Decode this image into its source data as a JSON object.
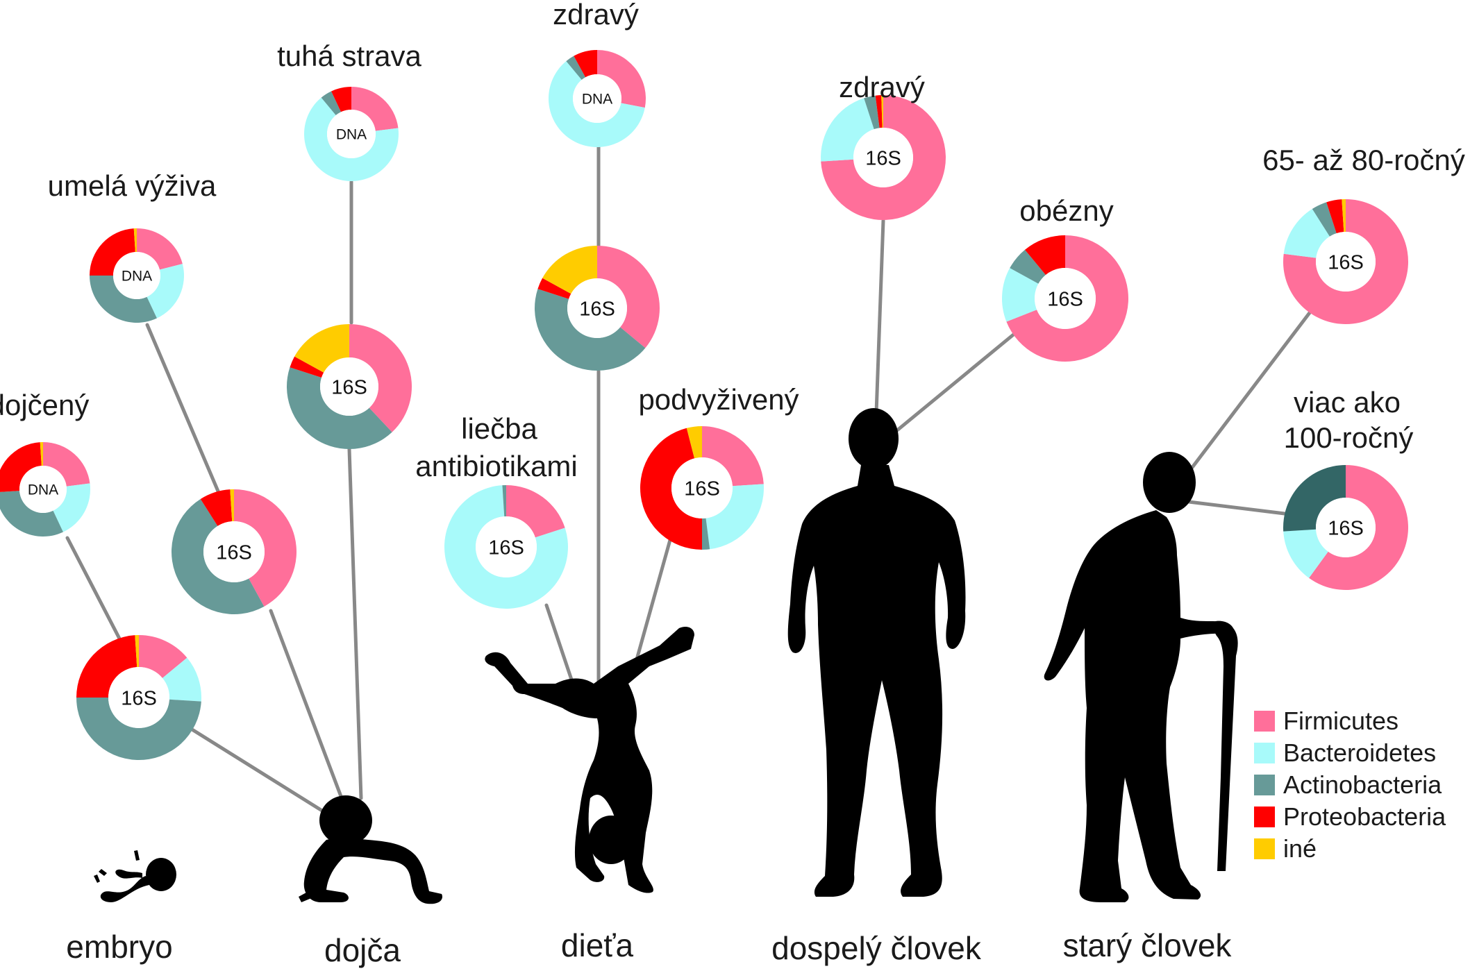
{
  "colors": {
    "firmicutes": "#ff6f9a",
    "bacteroidetes": "#a8fafa",
    "actinobacteria": "#679a98",
    "actinobacteria_dark": "#336666",
    "proteobacteria": "#ff0000",
    "other": "#ffcc00",
    "silhouette": "#000000",
    "connector": "#888888"
  },
  "stages": {
    "embryo": "embryo",
    "infant": "dojča",
    "child": "dieťa",
    "adult": "dospelý človek",
    "elderly": "starý človek"
  },
  "captions": {
    "breastfed": "dojčený",
    "formula": "umelá výživa",
    "solid_food": "tuhá strava",
    "healthy_child": "zdravý",
    "antibiotics_line1": "liečba",
    "antibiotics_line2": "antibiotikami",
    "malnourished": "podvyživený",
    "healthy_adult": "zdravý",
    "obese": "obézny",
    "age_65_80": "65- až 80-ročný",
    "centenarian_line1": "viac ako",
    "centenarian_line2": "100-ročný"
  },
  "legend": [
    {
      "key": "firmicutes",
      "label": "Firmicutes",
      "color": "#ff6f9a"
    },
    {
      "key": "bacteroidetes",
      "label": "Bacteroidetes",
      "color": "#a8fafa"
    },
    {
      "key": "actinobacteria",
      "label": "Actinobacteria",
      "color": "#679a98"
    },
    {
      "key": "proteobacteria",
      "label": "Proteobacteria",
      "color": "#ff0000"
    },
    {
      "key": "other",
      "label": "iné",
      "color": "#ffcc00"
    }
  ],
  "chart_data": [
    {
      "id": "breastfed-dna",
      "method": "DNA",
      "slices": [
        {
          "key": "firmicutes",
          "value": 23
        },
        {
          "key": "bacteroidetes",
          "value": 20
        },
        {
          "key": "actinobacteria",
          "value": 31
        },
        {
          "key": "proteobacteria",
          "value": 25
        },
        {
          "key": "other",
          "value": 1
        }
      ]
    },
    {
      "id": "breastfed-16s",
      "method": "16S",
      "slices": [
        {
          "key": "firmicutes",
          "value": 14
        },
        {
          "key": "bacteroidetes",
          "value": 12
        },
        {
          "key": "actinobacteria",
          "value": 49
        },
        {
          "key": "proteobacteria",
          "value": 24
        },
        {
          "key": "other",
          "value": 1
        }
      ]
    },
    {
      "id": "formula-dna",
      "method": "DNA",
      "slices": [
        {
          "key": "firmicutes",
          "value": 21
        },
        {
          "key": "bacteroidetes",
          "value": 22
        },
        {
          "key": "actinobacteria",
          "value": 32
        },
        {
          "key": "proteobacteria",
          "value": 24
        },
        {
          "key": "other",
          "value": 1
        }
      ]
    },
    {
      "id": "formula-16s",
      "method": "16S",
      "slices": [
        {
          "key": "firmicutes",
          "value": 42
        },
        {
          "key": "actinobacteria",
          "value": 49
        },
        {
          "key": "proteobacteria",
          "value": 8
        },
        {
          "key": "other",
          "value": 1
        }
      ]
    },
    {
      "id": "solid-dna",
      "method": "DNA",
      "slices": [
        {
          "key": "firmicutes",
          "value": 23
        },
        {
          "key": "bacteroidetes",
          "value": 66
        },
        {
          "key": "actinobacteria",
          "value": 4
        },
        {
          "key": "proteobacteria",
          "value": 7
        }
      ]
    },
    {
      "id": "solid-16s",
      "method": "16S",
      "slices": [
        {
          "key": "firmicutes",
          "value": 38
        },
        {
          "key": "actinobacteria",
          "value": 42
        },
        {
          "key": "proteobacteria",
          "value": 3
        },
        {
          "key": "other",
          "value": 17
        }
      ]
    },
    {
      "id": "child-healthy-dna",
      "method": "DNA",
      "slices": [
        {
          "key": "firmicutes",
          "value": 28
        },
        {
          "key": "bacteroidetes",
          "value": 61
        },
        {
          "key": "actinobacteria",
          "value": 3
        },
        {
          "key": "proteobacteria",
          "value": 8
        }
      ]
    },
    {
      "id": "child-16s",
      "method": "16S",
      "slices": [
        {
          "key": "firmicutes",
          "value": 36
        },
        {
          "key": "actinobacteria",
          "value": 44
        },
        {
          "key": "proteobacteria",
          "value": 3
        },
        {
          "key": "other",
          "value": 17
        }
      ]
    },
    {
      "id": "antibiotics-16s",
      "method": "16S",
      "slices": [
        {
          "key": "firmicutes",
          "value": 20
        },
        {
          "key": "bacteroidetes",
          "value": 79
        },
        {
          "key": "actinobacteria",
          "value": 1
        }
      ]
    },
    {
      "id": "malnourished-16s",
      "method": "16S",
      "slices": [
        {
          "key": "firmicutes",
          "value": 24
        },
        {
          "key": "bacteroidetes",
          "value": 24
        },
        {
          "key": "actinobacteria",
          "value": 2
        },
        {
          "key": "proteobacteria",
          "value": 46
        },
        {
          "key": "other",
          "value": 4
        }
      ]
    },
    {
      "id": "adult-healthy-16s",
      "method": "16S",
      "slices": [
        {
          "key": "firmicutes",
          "value": 74
        },
        {
          "key": "bacteroidetes",
          "value": 21
        },
        {
          "key": "actinobacteria",
          "value": 3
        },
        {
          "key": "proteobacteria",
          "value": 1.5
        },
        {
          "key": "other",
          "value": 0.5
        }
      ]
    },
    {
      "id": "obese-16s",
      "method": "16S",
      "slices": [
        {
          "key": "firmicutes",
          "value": 69
        },
        {
          "key": "bacteroidetes",
          "value": 14
        },
        {
          "key": "actinobacteria",
          "value": 6
        },
        {
          "key": "proteobacteria",
          "value": 11
        }
      ]
    },
    {
      "id": "age-65-80-16s",
      "method": "16S",
      "slices": [
        {
          "key": "firmicutes",
          "value": 77
        },
        {
          "key": "bacteroidetes",
          "value": 14
        },
        {
          "key": "actinobacteria",
          "value": 4
        },
        {
          "key": "proteobacteria",
          "value": 4
        },
        {
          "key": "other",
          "value": 1
        }
      ]
    },
    {
      "id": "centenarian-16s",
      "method": "16S",
      "slices": [
        {
          "key": "firmicutes",
          "value": 60
        },
        {
          "key": "bacteroidetes",
          "value": 14
        },
        {
          "key": "actinobacteria_dark",
          "value": 26
        }
      ]
    }
  ]
}
